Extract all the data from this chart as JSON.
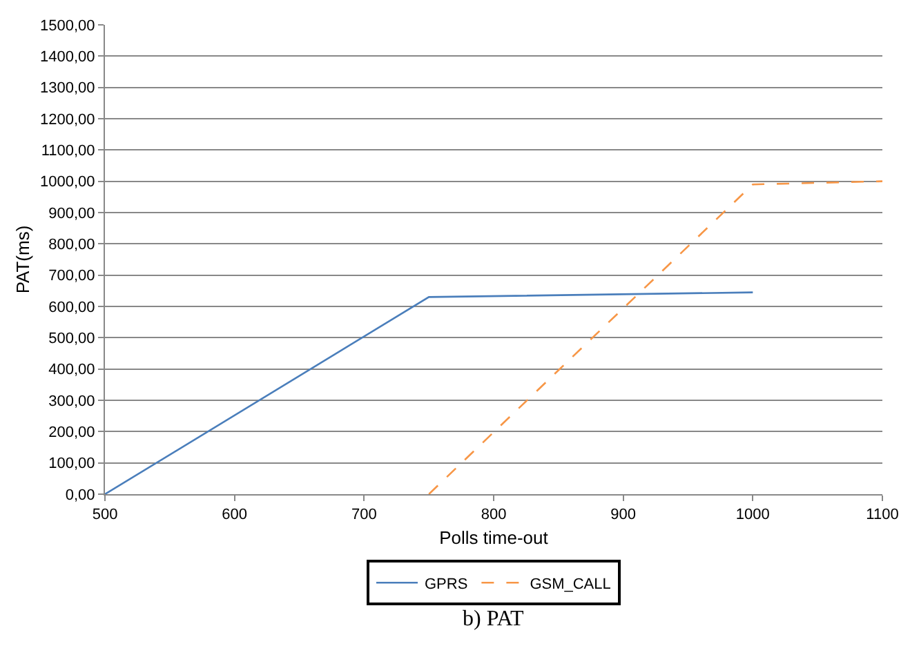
{
  "chart_data": {
    "type": "line",
    "xlabel": "Polls time-out",
    "ylabel": "PAT(ms)",
    "annotations": [
      "b) PAT"
    ],
    "series": [
      {
        "name": "GPRS",
        "color": "#4a7ebb",
        "line_style": "solid",
        "x": [
          500,
          750,
          1000
        ],
        "values": [
          0,
          630,
          645
        ]
      },
      {
        "name": "GSM_CALL",
        "color": "#f79646",
        "line_style": "dashed",
        "x": [
          750,
          1000,
          1100
        ],
        "values": [
          0,
          990,
          1000
        ]
      }
    ],
    "xlim": [
      500,
      1100
    ],
    "xticks": [
      500,
      600,
      700,
      800,
      900,
      1000,
      1100
    ],
    "ylim": [
      0,
      1500
    ],
    "yticks": [
      {
        "value": 0,
        "label": "0,00"
      },
      {
        "value": 100,
        "label": "100,00"
      },
      {
        "value": 200,
        "label": "200,00"
      },
      {
        "value": 300,
        "label": "300,00"
      },
      {
        "value": 400,
        "label": "400,00"
      },
      {
        "value": 500,
        "label": "500,00"
      },
      {
        "value": 600,
        "label": "600,00"
      },
      {
        "value": 700,
        "label": "700,00"
      },
      {
        "value": 800,
        "label": "800,00"
      },
      {
        "value": 900,
        "label": "900,00"
      },
      {
        "value": 1000,
        "label": "1000,00"
      },
      {
        "value": 1100,
        "label": "1100,00"
      },
      {
        "value": 1200,
        "label": "1200,00"
      },
      {
        "value": 1300,
        "label": "1300,00"
      },
      {
        "value": 1400,
        "label": "1400,00"
      },
      {
        "value": 1500,
        "label": "1500,00"
      }
    ],
    "grid": "y",
    "legend": "bottom",
    "marker": "none"
  }
}
